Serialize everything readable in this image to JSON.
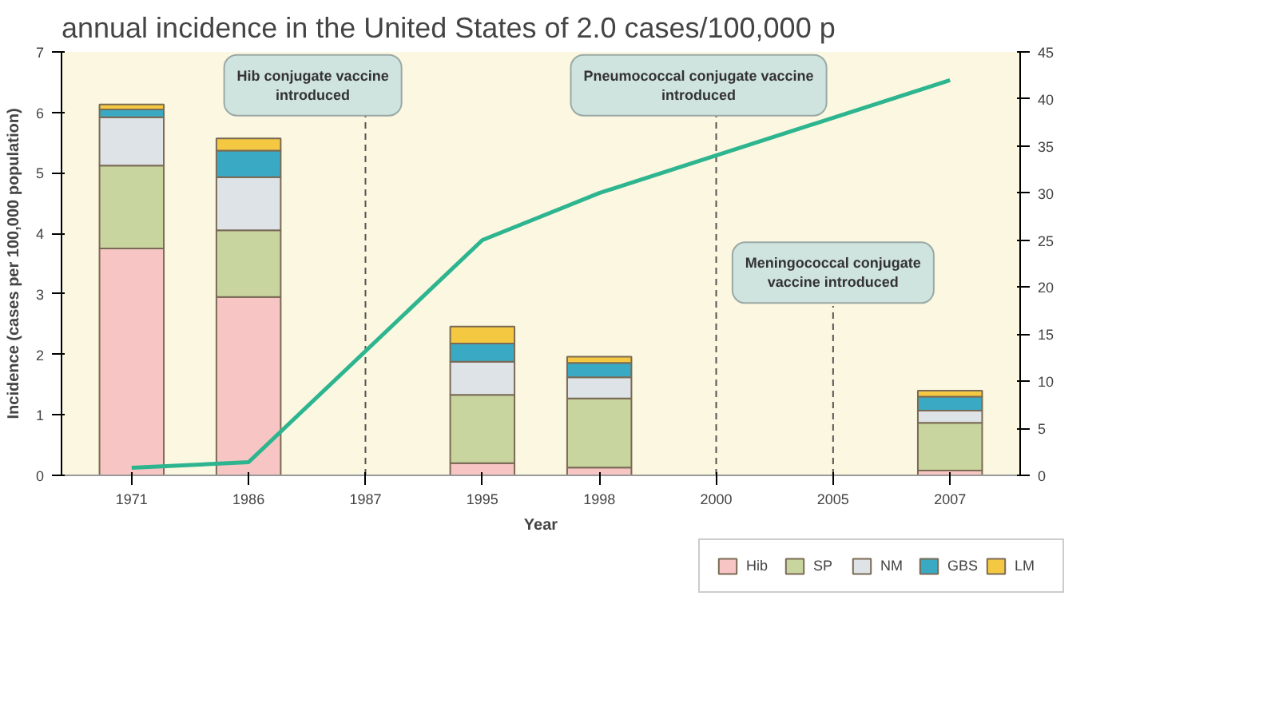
{
  "chart_data": {
    "type": "bar",
    "stacked": true,
    "title": "annual incidence in the United States of 2.0 cases/100,000 p",
    "xlabel": "Year",
    "ylabel": "Incidence (cases per 100,000 population)",
    "categories": [
      "1971",
      "1986",
      "1987",
      "1995",
      "1998",
      "2000",
      "2005",
      "2007"
    ],
    "series": [
      {
        "name": "Hib",
        "color": "#f7c6c4",
        "values": [
          3.75,
          2.95,
          null,
          0.2,
          0.13,
          null,
          null,
          0.08
        ]
      },
      {
        "name": "SP",
        "color": "#c9d59f",
        "values": [
          1.37,
          1.1,
          null,
          1.13,
          1.14,
          null,
          null,
          0.79
        ]
      },
      {
        "name": "NM",
        "color": "#dde3e6",
        "values": [
          0.8,
          0.88,
          null,
          0.55,
          0.35,
          null,
          null,
          0.2
        ]
      },
      {
        "name": "GBS",
        "color": "#3aaac4",
        "values": [
          0.13,
          0.44,
          null,
          0.3,
          0.24,
          null,
          null,
          0.23
        ]
      },
      {
        "name": "LM",
        "color": "#f5c842",
        "values": [
          0.08,
          0.2,
          null,
          0.28,
          0.1,
          null,
          null,
          0.1
        ]
      },
      {
        "type": "line",
        "axis": "y2",
        "color": "#2db58f",
        "values": [
          0.8,
          1.4,
          null,
          25,
          30,
          null,
          null,
          42
        ]
      }
    ],
    "ylim": [
      0,
      7
    ],
    "yticks": [
      0,
      1,
      2,
      3,
      4,
      5,
      6,
      7
    ],
    "y2lim": [
      0,
      45
    ],
    "y2ticks": [
      0,
      5,
      10,
      15,
      20,
      25,
      30,
      35,
      40,
      45
    ],
    "ref_lines": [
      {
        "axis": "x",
        "value": "1987",
        "label": "Hib conjugate vaccine introduced",
        "line_style": "dashed"
      },
      {
        "axis": "x",
        "value": "2000",
        "label": "Pneumococcal conjugate vaccine introduced",
        "line_style": "dashed"
      },
      {
        "axis": "x",
        "value": "2005",
        "label": "Meningococcal conjugate vaccine introduced",
        "line_style": "dashed"
      }
    ],
    "legend": "bottom",
    "grid": false
  }
}
